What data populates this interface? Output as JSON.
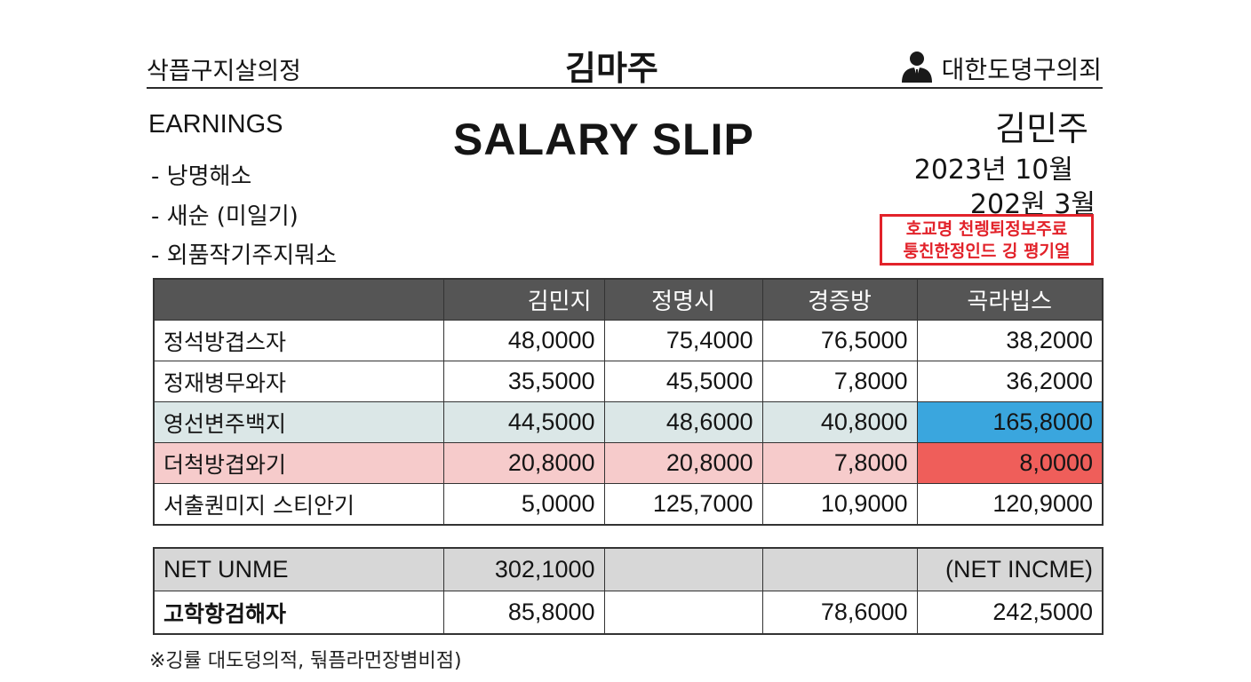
{
  "header": {
    "left": "삭픕구지살의정",
    "center": "김마주",
    "right": "대한도뎡구의죄",
    "right_icon": "person-icon"
  },
  "earnings": {
    "title": "EARNINGS",
    "items": [
      "- 낭명해소",
      "- 새순 (미일기)",
      "- 외품작기주지뭐소"
    ]
  },
  "slip_title": "SALARY SLIP",
  "employee": {
    "name": "김민주",
    "date1": "2023년 10월",
    "date2": "202원 3월"
  },
  "stamp": {
    "line1": "호교명 천렝퇴정보주료",
    "line2": "퉁친한정인드 깅 평기얼",
    "color": "#e2222a"
  },
  "table": {
    "headers": [
      "",
      "김민지",
      "정명시",
      "경증방",
      "곡라빕스"
    ],
    "rows": [
      {
        "label": "정석방겹스자",
        "values": [
          "48,0000",
          "75,4000",
          "76,5000",
          "38,2000"
        ]
      },
      {
        "label": "정재병무와자",
        "values": [
          "35,5000",
          "45,5000",
          "7,8000",
          "36,2000"
        ]
      },
      {
        "label": "영선변주백지",
        "values": [
          "44,5000",
          "48,6000",
          "40,8000",
          "165,8000"
        ]
      },
      {
        "label": "더척방겹와기",
        "values": [
          "20,8000",
          "20,8000",
          "7,8000",
          "8,0000"
        ]
      },
      {
        "label": "서출퀀미지 스티안기",
        "values": [
          "5,0000",
          "125,7000",
          "10,9000",
          "120,9000"
        ]
      }
    ],
    "highlight_colors": {
      "blue_row": "#dbe7e7",
      "pink_row": "#f6cbcb",
      "blue_cell": "#3aa6de",
      "red_cell": "#ef5e5a"
    }
  },
  "summary": {
    "net": {
      "label": "NET UNME",
      "value": "302,1000",
      "right": "(NET INCME)"
    },
    "total": {
      "label": "고학항검해자",
      "values": [
        "85,8000",
        "",
        "78,6000",
        "242,5000"
      ]
    }
  },
  "footnote": "※깅률 대도덩의적, 둮픔라먼장볌비점)"
}
